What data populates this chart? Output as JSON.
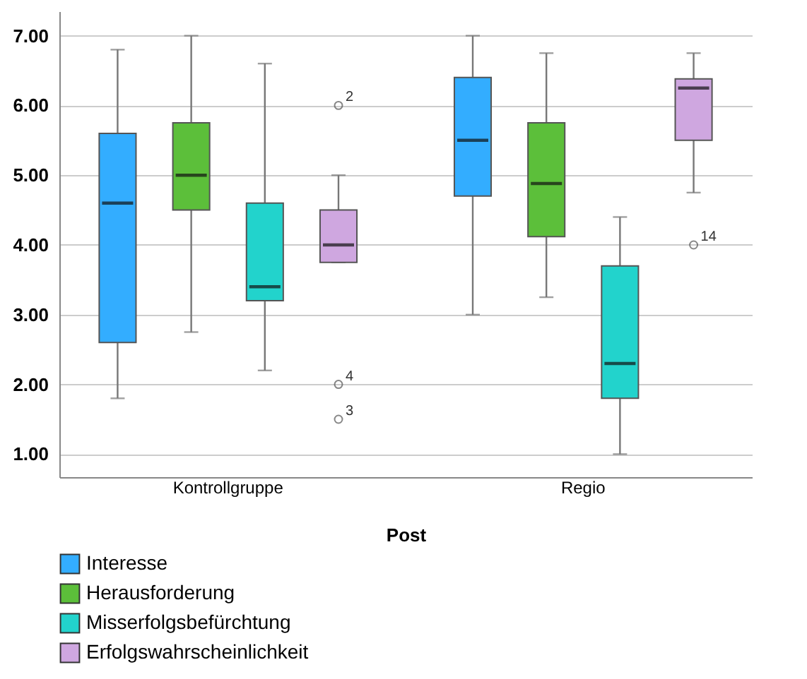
{
  "chart_data": {
    "type": "box",
    "xlabel": "Post",
    "categories": [
      "Kontrollgruppe",
      "Regio"
    ],
    "ylim": [
      0.67,
      7.35
    ],
    "yticks": [
      {
        "value": 1,
        "label": "1.00"
      },
      {
        "value": 2,
        "label": "2.00"
      },
      {
        "value": 3,
        "label": "3.00"
      },
      {
        "value": 4,
        "label": "4.00"
      },
      {
        "value": 5,
        "label": "5.00"
      },
      {
        "value": 6,
        "label": "6.00"
      },
      {
        "value": 7,
        "label": "7.00"
      }
    ],
    "grid": "y",
    "legend": "bottom left",
    "series": [
      {
        "name": "Interesse",
        "color": "#33adff",
        "boxes": [
          {
            "low": 1.8,
            "q1": 2.6,
            "median": 4.6,
            "q3": 5.6,
            "high": 6.8
          },
          {
            "low": 3.0,
            "q1": 4.7,
            "median": 5.5,
            "q3": 6.4,
            "high": 7.0
          }
        ]
      },
      {
        "name": "Herausforderung",
        "color": "#5cbf3a",
        "boxes": [
          {
            "low": 2.75,
            "q1": 4.5,
            "median": 5.0,
            "q3": 5.75,
            "high": 7.0
          },
          {
            "low": 3.25,
            "q1": 4.12,
            "median": 4.88,
            "q3": 5.75,
            "high": 6.75
          }
        ]
      },
      {
        "name": "Misserfolgsbefürchtung",
        "color": "#22d3cc",
        "boxes": [
          {
            "low": 2.2,
            "q1": 3.2,
            "median": 3.4,
            "q3": 4.6,
            "high": 6.6
          },
          {
            "low": 1.0,
            "q1": 1.8,
            "median": 2.3,
            "q3": 3.7,
            "high": 4.4
          }
        ]
      },
      {
        "name": "Erfolgswahrscheinlichkeit",
        "color": "#cfa7e0",
        "boxes": [
          {
            "low": 3.75,
            "q1": 3.75,
            "median": 4.0,
            "q3": 4.5,
            "high": 5.0,
            "outliers": [
              6.0,
              2.0,
              1.5
            ]
          },
          {
            "low": 4.75,
            "q1": 5.5,
            "median": 6.25,
            "q3": 6.38,
            "high": 6.75,
            "outliers": [
              4.0
            ]
          }
        ]
      }
    ],
    "annotations": [
      "2",
      "4",
      "3",
      "14"
    ]
  }
}
